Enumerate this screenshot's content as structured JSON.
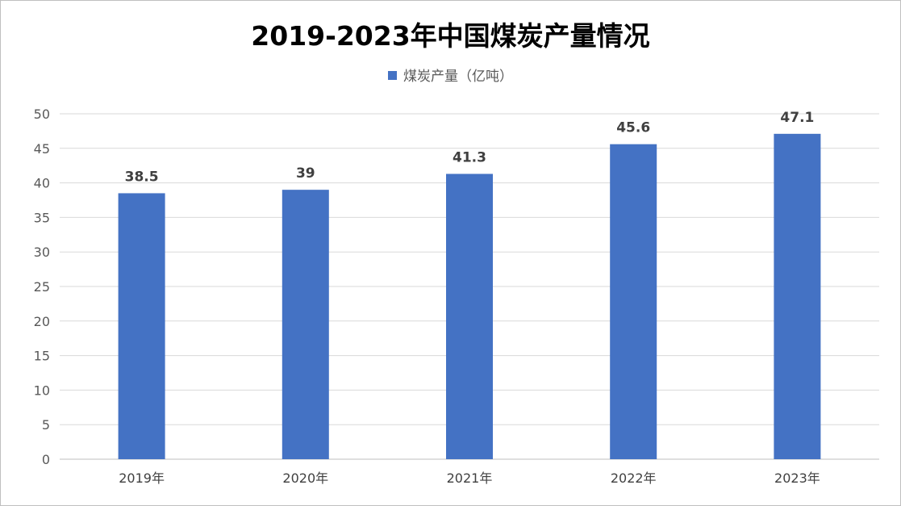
{
  "chart_data": {
    "type": "bar",
    "title": "2019-2023年中国煤炭产量情况",
    "categories": [
      "2019年",
      "2020年",
      "2021年",
      "2022年",
      "2023年"
    ],
    "series": [
      {
        "name": "煤炭产量（亿吨）",
        "values": [
          38.5,
          39,
          41.3,
          45.6,
          47.1
        ],
        "color": "#4472c4"
      }
    ],
    "data_labels": [
      "38.5",
      "39",
      "41.3",
      "45.6",
      "47.1"
    ],
    "ylim": [
      0,
      50
    ],
    "yticks": [
      0,
      5,
      10,
      15,
      20,
      25,
      30,
      35,
      40,
      45,
      50
    ],
    "xlabel": "",
    "ylabel": "",
    "grid": true,
    "legend_position": "top"
  }
}
